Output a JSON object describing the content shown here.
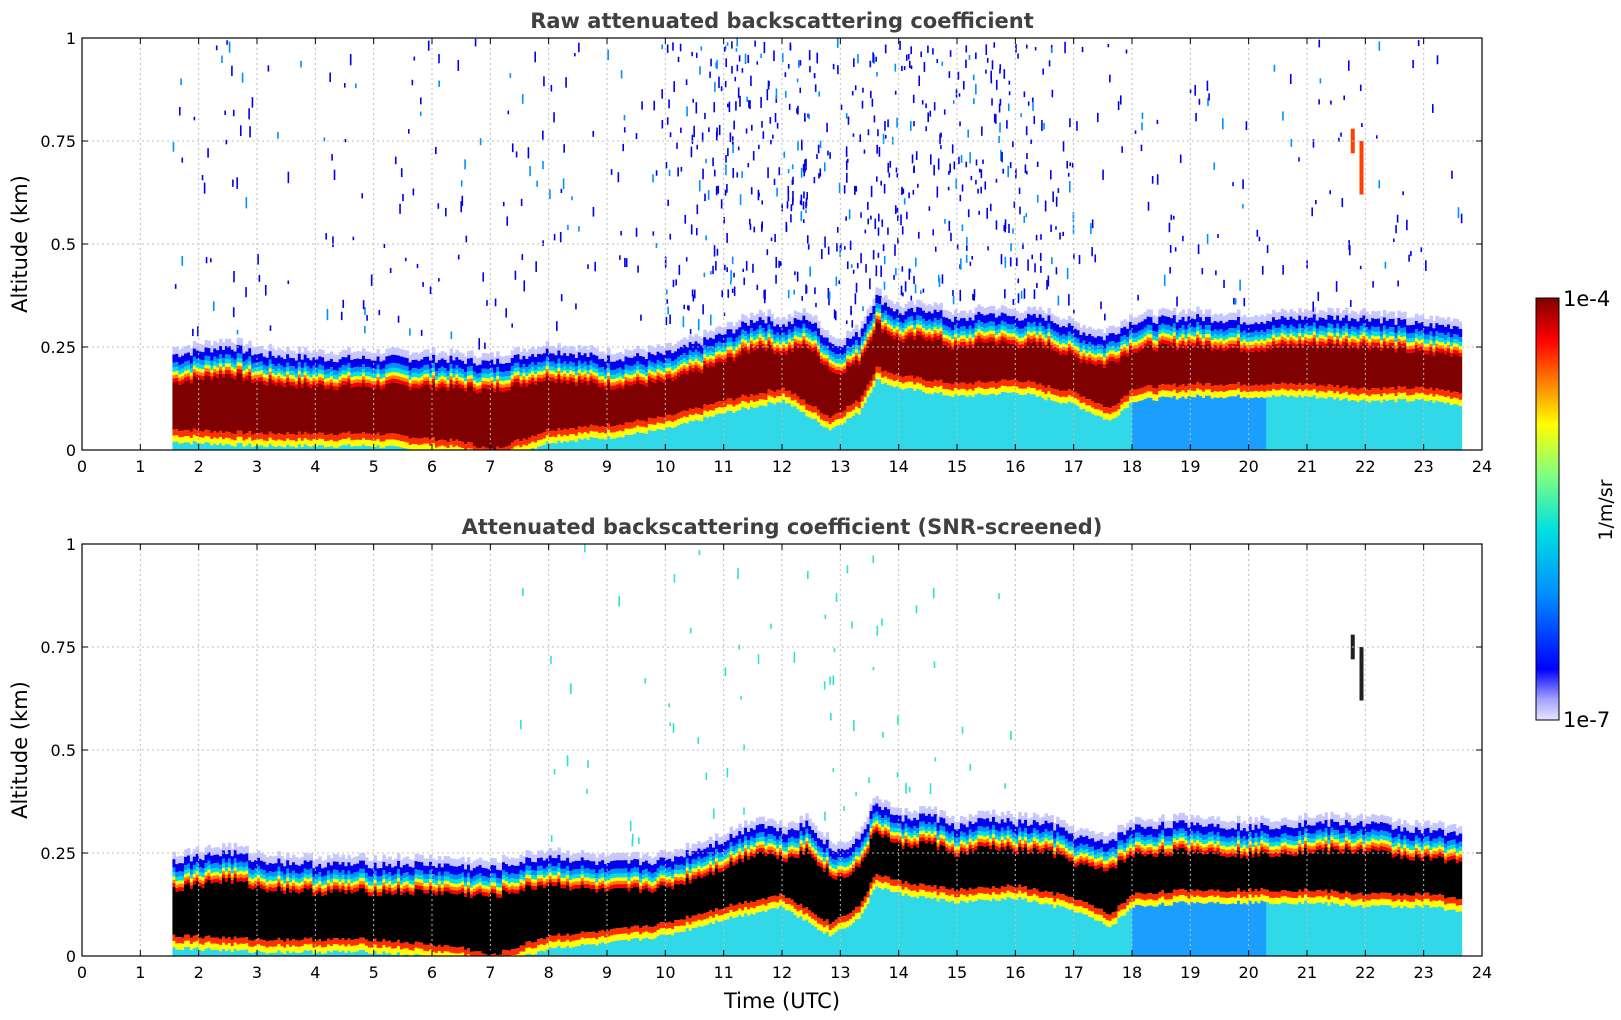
{
  "chart_data": [
    {
      "type": "heatmap",
      "title": "Raw attenuated backscattering coefficient",
      "xlabel": "",
      "ylabel": "Altitude (km)",
      "xlim": [
        0,
        24
      ],
      "ylim": [
        0,
        1
      ],
      "xticks": [
        "0",
        "1",
        "2",
        "3",
        "4",
        "5",
        "6",
        "7",
        "8",
        "9",
        "10",
        "11",
        "12",
        "13",
        "14",
        "15",
        "16",
        "17",
        "18",
        "19",
        "20",
        "21",
        "22",
        "23",
        "24"
      ],
      "yticks": [
        "0",
        "0.25",
        "0.5",
        "0.75",
        "1"
      ],
      "grid": true,
      "data_time_range": [
        1.55,
        23.65
      ],
      "boundary_layer_top_km": [
        [
          1.6,
          0.22
        ],
        [
          2.5,
          0.24
        ],
        [
          3,
          0.22
        ],
        [
          4,
          0.21
        ],
        [
          5,
          0.21
        ],
        [
          6,
          0.21
        ],
        [
          7,
          0.2
        ],
        [
          8,
          0.23
        ],
        [
          9,
          0.21
        ],
        [
          10,
          0.22
        ],
        [
          11,
          0.27
        ],
        [
          11.6,
          0.31
        ],
        [
          12,
          0.29
        ],
        [
          12.4,
          0.31
        ],
        [
          12.9,
          0.24
        ],
        [
          13.3,
          0.27
        ],
        [
          13.6,
          0.36
        ],
        [
          14,
          0.32
        ],
        [
          14.5,
          0.33
        ],
        [
          15,
          0.3
        ],
        [
          15.5,
          0.32
        ],
        [
          16,
          0.31
        ],
        [
          16.5,
          0.31
        ],
        [
          17,
          0.28
        ],
        [
          17.5,
          0.26
        ],
        [
          18,
          0.3
        ],
        [
          19,
          0.31
        ],
        [
          20,
          0.3
        ],
        [
          21,
          0.31
        ],
        [
          22,
          0.31
        ],
        [
          23,
          0.29
        ],
        [
          23.65,
          0.29
        ]
      ],
      "dense_layer_bottom_km": [
        [
          1.6,
          0.05
        ],
        [
          3,
          0.04
        ],
        [
          5,
          0.04
        ],
        [
          6.5,
          0.02
        ],
        [
          7,
          0.0
        ],
        [
          8,
          0.05
        ],
        [
          9,
          0.06
        ],
        [
          10,
          0.08
        ],
        [
          11,
          0.12
        ],
        [
          12,
          0.15
        ],
        [
          12.8,
          0.08
        ],
        [
          13.3,
          0.12
        ],
        [
          13.6,
          0.2
        ],
        [
          14,
          0.18
        ],
        [
          15,
          0.16
        ],
        [
          16,
          0.17
        ],
        [
          17,
          0.14
        ],
        [
          17.6,
          0.1
        ],
        [
          18,
          0.15
        ],
        [
          19,
          0.16
        ],
        [
          20,
          0.16
        ],
        [
          21,
          0.16
        ],
        [
          22,
          0.15
        ],
        [
          23,
          0.15
        ],
        [
          23.65,
          0.14
        ]
      ]
    },
    {
      "type": "heatmap",
      "title": "Attenuated backscattering coefficient (SNR-screened)",
      "xlabel": "Time (UTC)",
      "ylabel": "Altitude (km)",
      "xlim": [
        0,
        24
      ],
      "ylim": [
        0,
        1
      ],
      "xticks": [
        "0",
        "1",
        "2",
        "3",
        "4",
        "5",
        "6",
        "7",
        "8",
        "9",
        "10",
        "11",
        "12",
        "13",
        "14",
        "15",
        "16",
        "17",
        "18",
        "19",
        "20",
        "21",
        "22",
        "23",
        "24"
      ],
      "yticks": [
        "0",
        "0.25",
        "0.5",
        "0.75",
        "1"
      ],
      "grid": true,
      "data_time_range": [
        1.55,
        23.65
      ]
    }
  ],
  "colorbar": {
    "label": "1/m/sr",
    "max_label": "1e-4",
    "min_label": "1e-7",
    "colors": [
      "#7f0000",
      "#ff0000",
      "#ff8000",
      "#ffff00",
      "#80ff80",
      "#00ffff",
      "#0080ff",
      "#0000ff",
      "#d8d8ff"
    ]
  }
}
